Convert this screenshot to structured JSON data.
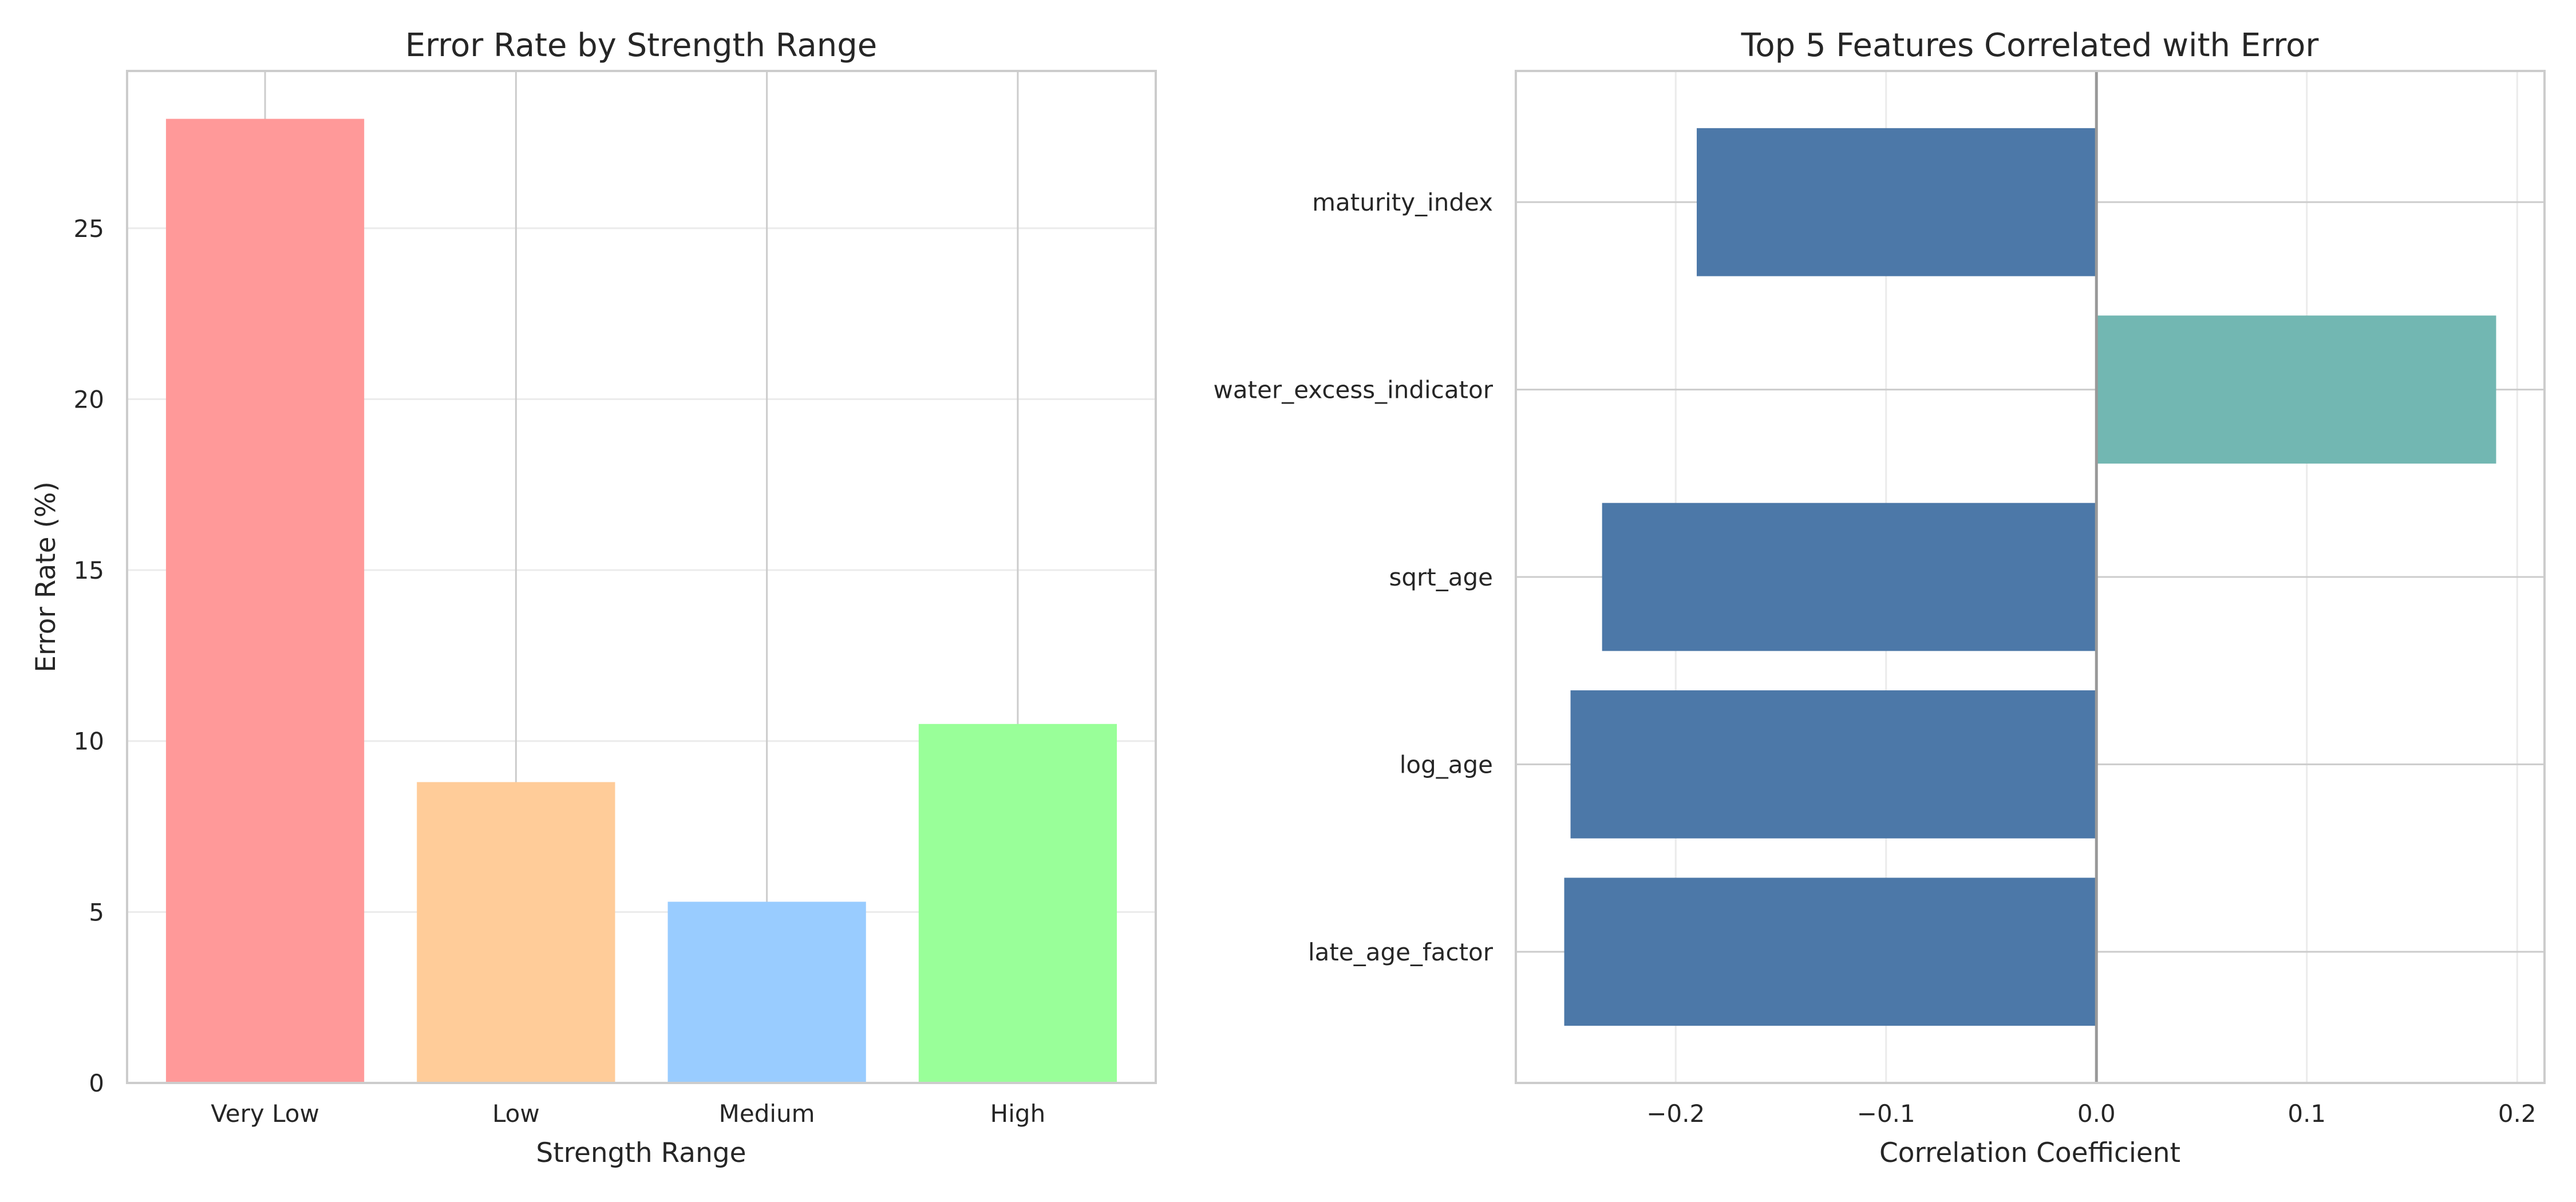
{
  "chart_data": [
    {
      "type": "bar",
      "title": "Error Rate by Strength Range",
      "xlabel": "Strength Range",
      "ylabel": "Error Rate (%)",
      "categories": [
        "Very Low",
        "Low",
        "Medium",
        "High"
      ],
      "values": [
        28.2,
        8.8,
        5.3,
        10.5
      ],
      "colors": [
        "#ff9999",
        "#ffcc99",
        "#99ccff",
        "#99ff99"
      ],
      "ylim": [
        0,
        29.6
      ],
      "yticks": [
        0,
        5,
        10,
        15,
        20,
        25
      ],
      "ytick_labels": [
        "0",
        "5",
        "10",
        "15",
        "20",
        "25"
      ],
      "grid": true
    },
    {
      "type": "bar",
      "orientation": "horizontal",
      "title": "Top 5 Features Correlated with Error",
      "xlabel": "Correlation Coefficient",
      "ylabel": "",
      "categories": [
        "late_age_factor",
        "log_age",
        "sqrt_age",
        "water_excess_indicator",
        "maturity_index"
      ],
      "values": [
        -0.253,
        -0.25,
        -0.235,
        0.19,
        -0.19
      ],
      "negative_color": "#4c78a8",
      "positive_color": "#72b7b2",
      "xlim": [
        -0.276,
        0.213
      ],
      "xticks": [
        -0.2,
        -0.1,
        0.0,
        0.1,
        0.2
      ],
      "xtick_labels": [
        "−0.2",
        "−0.1",
        "0.0",
        "0.1",
        "0.2"
      ],
      "zero_line": true,
      "grid": true
    }
  ]
}
